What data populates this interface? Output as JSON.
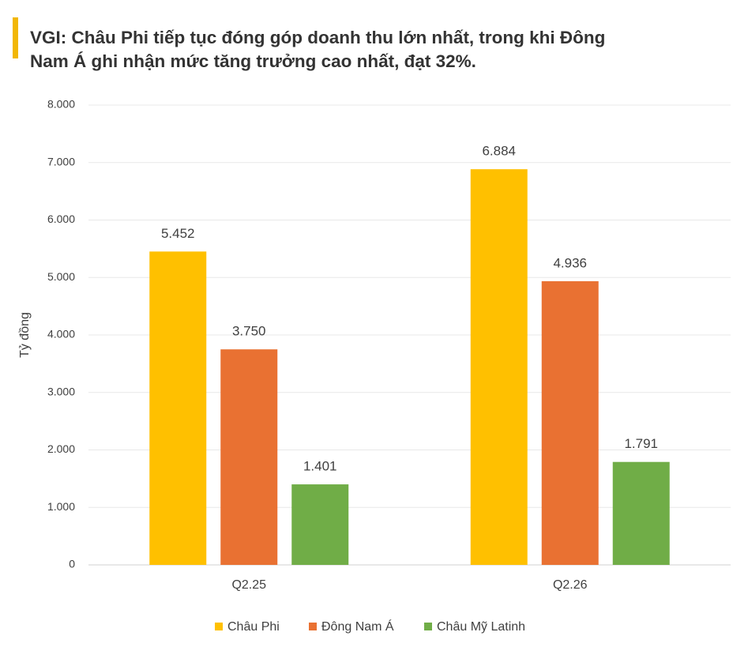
{
  "chart_data": {
    "type": "bar",
    "title": "VGI: Châu Phi tiếp tục đóng góp doanh thu lớn nhất, trong khi Đông Nam Á ghi nhận mức tăng trưởng cao nhất, đạt 32%.",
    "ylabel": "Tỷ đồng",
    "categories": [
      "Q2.25",
      "Q2.26"
    ],
    "series": [
      {
        "name": "Châu Phi",
        "color": "#FFC000",
        "values": [
          5452,
          6884
        ],
        "value_labels": [
          "5.452",
          "6.884"
        ]
      },
      {
        "name": "Đông Nam Á",
        "color": "#E97132",
        "values": [
          3750,
          4936
        ],
        "value_labels": [
          "3.750",
          "4.936"
        ]
      },
      {
        "name": "Châu Mỹ Latinh",
        "color": "#70AD47",
        "values": [
          1401,
          1791
        ],
        "value_labels": [
          "1.401",
          "1.791"
        ]
      }
    ],
    "ylim": [
      0,
      8000
    ],
    "yticks": [
      0,
      {
        "value": 1000,
        "label": "1.000"
      },
      {
        "value": 2000,
        "label": "2.000"
      },
      {
        "value": 3000,
        "label": "3.000"
      },
      {
        "value": 4000,
        "label": "4.000"
      },
      {
        "value": 5000,
        "label": "5.000"
      },
      {
        "value": 6000,
        "label": "6.000"
      },
      {
        "value": 7000,
        "label": "7.000"
      },
      {
        "value": 8000,
        "label": "8.000"
      }
    ],
    "grid": true,
    "legend": "bottom"
  }
}
